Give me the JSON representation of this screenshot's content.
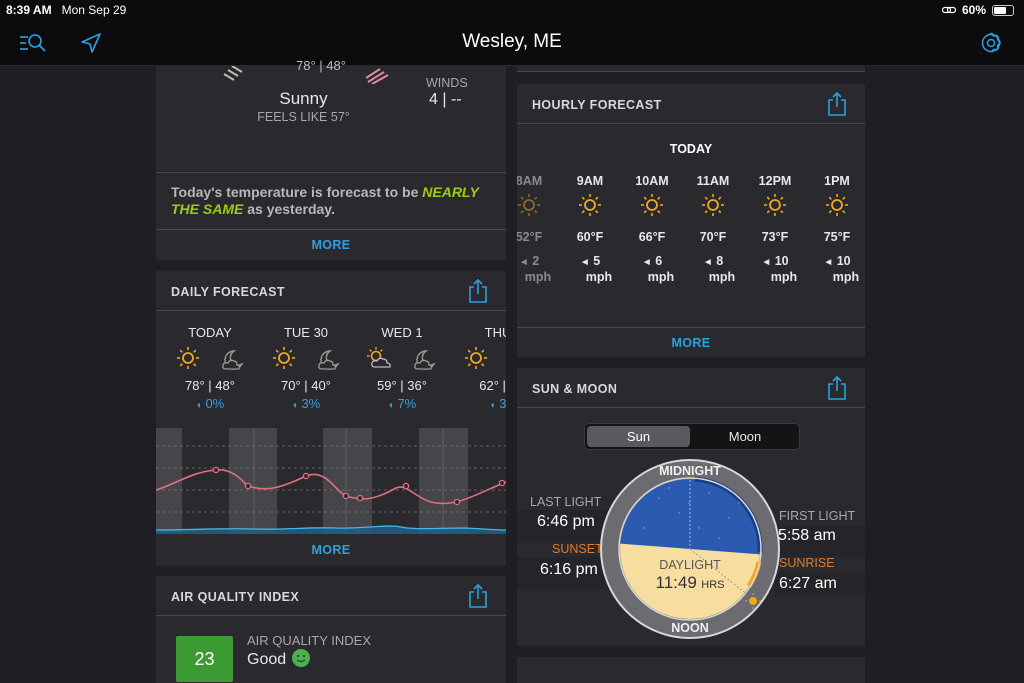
{
  "status": {
    "time": "8:39 AM",
    "date": "Mon Sep 29",
    "battery": "60%",
    "battery_level": 0.6
  },
  "nav": {
    "title": "Wesley, ME"
  },
  "current": {
    "condition": "Sunny",
    "temps": "78° | 48°",
    "feels_like": "FEELS LIKE 57°",
    "winds_label": "WINDS",
    "winds_value": "4 | --",
    "summary_prefix": "Today's temperature is forecast to be ",
    "summary_highlight_1": "NEARLY",
    "summary_highlight_2": "THE SAME",
    "summary_suffix": " as yesterday.",
    "more": "MORE"
  },
  "daily": {
    "title": "DAILY FORECAST",
    "more": "MORE",
    "days": [
      {
        "name": "TODAY",
        "temps": "78° | 48°",
        "precip": "0%"
      },
      {
        "name": "TUE 30",
        "temps": "70° | 40°",
        "precip": "3%"
      },
      {
        "name": "WED 1",
        "temps": "59° | 36°",
        "precip": "7%"
      },
      {
        "name": "THU",
        "temps": "62° | 3",
        "precip": "3"
      }
    ]
  },
  "aqi": {
    "title": "AIR QUALITY INDEX",
    "value": "23",
    "label": "AIR QUALITY INDEX",
    "status": "Good",
    "color": "#3c9a32"
  },
  "hourly": {
    "title": "HOURLY FORECAST",
    "day_label": "TODAY",
    "more": "MORE",
    "hours": [
      {
        "time": "8AM",
        "temp": "52°F",
        "wind": "2",
        "unit": "mph"
      },
      {
        "time": "9AM",
        "temp": "60°F",
        "wind": "5",
        "unit": "mph"
      },
      {
        "time": "10AM",
        "temp": "66°F",
        "wind": "6",
        "unit": "mph"
      },
      {
        "time": "11AM",
        "temp": "70°F",
        "wind": "8",
        "unit": "mph"
      },
      {
        "time": "12PM",
        "temp": "73°F",
        "wind": "10",
        "unit": "mph"
      },
      {
        "time": "1PM",
        "temp": "75°F",
        "wind": "10",
        "unit": "mph"
      }
    ]
  },
  "sun_moon": {
    "title": "SUN & MOON",
    "tabs": [
      "Sun",
      "Moon"
    ],
    "last_light_label": "LAST LIGHT",
    "last_light": "6:46 pm",
    "sunset_label": "SUNSET",
    "sunset": "6:16 pm",
    "first_light_label": "FIRST LIGHT",
    "first_light": "5:58 am",
    "sunrise_label": "SUNRISE",
    "sunrise": "6:27 am",
    "midnight": "MIDNIGHT",
    "noon": "NOON",
    "daylight_label": "DAYLIGHT",
    "daylight_value": "11:49",
    "daylight_unit": "HRS"
  },
  "colors": {
    "accent": "#2e9fe0",
    "highlight": "#9ccc1a",
    "sunset": "#e07a2e",
    "sun": "#f0a823"
  }
}
